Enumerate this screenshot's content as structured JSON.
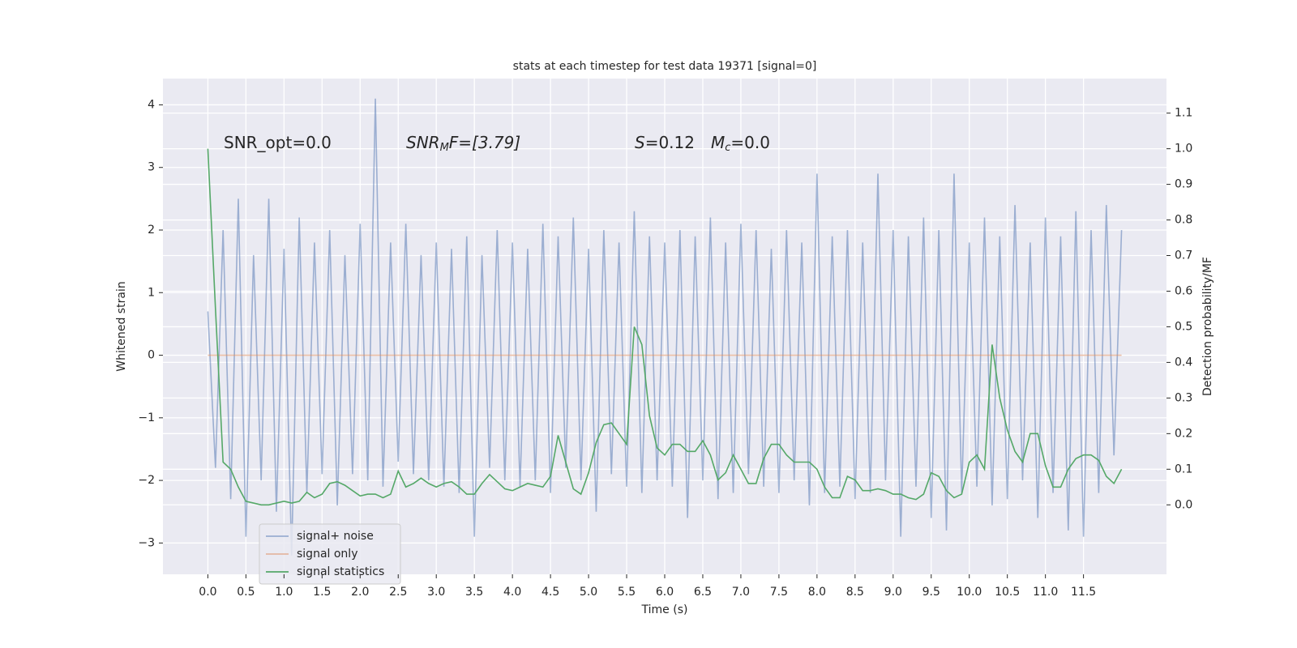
{
  "chart_data": {
    "type": "line",
    "title": "stats at each timestep for test data 19371 [signal=0]",
    "xlabel": "Time (s)",
    "ylabel": "Whitened strain",
    "y2label": "Detection probability/MF",
    "annotations": [
      {
        "text": [
          "SNR_opt=0.0"
        ]
      },
      {
        "text": [
          "SNR",
          "M",
          "F=[3.79]"
        ]
      },
      {
        "text": [
          "S",
          "=0.12",
          "M",
          "c",
          "=0.0"
        ]
      }
    ],
    "x": [
      0,
      0.1,
      0.2,
      0.3,
      0.4,
      0.5,
      0.6,
      0.7,
      0.8,
      0.9,
      1,
      1.1,
      1.2,
      1.3,
      1.4,
      1.5,
      1.6,
      1.7,
      1.8,
      1.9,
      2,
      2.1,
      2.2,
      2.3,
      2.4,
      2.5,
      2.6,
      2.7,
      2.8,
      2.9,
      3,
      3.1,
      3.2,
      3.3,
      3.4,
      3.5,
      3.6,
      3.7,
      3.8,
      3.9,
      4,
      4.1,
      4.2,
      4.3,
      4.4,
      4.5,
      4.6,
      4.7,
      4.8,
      4.9,
      5,
      5.1,
      5.2,
      5.3,
      5.4,
      5.5,
      5.6,
      5.7,
      5.8,
      5.9,
      6,
      6.1,
      6.2,
      6.3,
      6.4,
      6.5,
      6.6,
      6.7,
      6.8,
      6.9,
      7,
      7.1,
      7.2,
      7.3,
      7.4,
      7.5,
      7.6,
      7.7,
      7.8,
      7.9,
      8,
      8.1,
      8.2,
      8.3,
      8.4,
      8.5,
      8.6,
      8.7,
      8.8,
      8.9,
      9,
      9.1,
      9.2,
      9.3,
      9.4,
      9.5,
      9.6,
      9.7,
      9.8,
      9.9,
      10,
      10.1,
      10.2,
      10.3,
      10.4,
      10.5,
      10.6,
      10.7,
      10.8,
      10.9,
      11,
      11.1,
      11.2,
      11.3,
      11.4,
      11.5,
      11.6,
      11.7,
      11.8,
      11.9,
      12
    ],
    "series": [
      {
        "name": "signal+ noise",
        "color": "#4c72b0",
        "opacity": 0.5,
        "axis": "y",
        "values": [
          0.7,
          -1.8,
          2.0,
          -2.3,
          2.5,
          -2.9,
          1.6,
          -2.0,
          2.5,
          -2.5,
          1.7,
          -3.2,
          2.2,
          -2.2,
          1.8,
          -1.9,
          2.0,
          -2.4,
          1.6,
          -1.9,
          2.1,
          -2.0,
          4.1,
          -2.1,
          1.8,
          -1.7,
          2.1,
          -1.9,
          1.6,
          -2.0,
          1.8,
          -2.1,
          1.7,
          -2.2,
          1.9,
          -2.9,
          1.6,
          -1.8,
          2.0,
          -2.0,
          1.8,
          -2.1,
          1.7,
          -2.0,
          2.1,
          -2.2,
          1.9,
          -1.8,
          2.2,
          -2.0,
          1.7,
          -2.5,
          2.0,
          -1.9,
          1.8,
          -2.1,
          2.3,
          -2.2,
          1.9,
          -2.0,
          1.8,
          -2.1,
          2.0,
          -2.6,
          1.9,
          -2.0,
          2.2,
          -2.3,
          1.8,
          -2.2,
          2.1,
          -1.9,
          2.0,
          -2.1,
          1.7,
          -2.2,
          2.0,
          -2.0,
          1.8,
          -2.4,
          2.9,
          -2.2,
          1.9,
          -2.1,
          2.0,
          -2.3,
          1.8,
          -2.2,
          2.9,
          -2.0,
          2.0,
          -2.9,
          1.9,
          -2.1,
          2.2,
          -2.6,
          2.0,
          -2.8,
          2.9,
          -2.2,
          1.8,
          -2.1,
          2.2,
          -2.4,
          1.9,
          -2.3,
          2.4,
          -2.0,
          1.8,
          -2.6,
          2.2,
          -2.2,
          1.9,
          -2.8,
          2.3,
          -2.9,
          2.0,
          -2.2,
          2.4,
          -1.6,
          2.0
        ]
      },
      {
        "name": "signal only",
        "color": "#dd8452",
        "opacity": 0.5,
        "axis": "y",
        "x": [
          0,
          12
        ],
        "values": [
          0,
          0
        ]
      },
      {
        "name": "signal statistics",
        "color": "#55a868",
        "opacity": 1,
        "axis": "y2",
        "values": [
          1.0,
          0.55,
          0.12,
          0.1,
          0.05,
          0.01,
          0.005,
          0,
          0,
          0.005,
          0.01,
          0.005,
          0.01,
          0.035,
          0.02,
          0.03,
          0.06,
          0.065,
          0.055,
          0.04,
          0.025,
          0.03,
          0.03,
          0.02,
          0.03,
          0.095,
          0.05,
          0.06,
          0.075,
          0.06,
          0.05,
          0.06,
          0.065,
          0.05,
          0.03,
          0.03,
          0.06,
          0.085,
          0.065,
          0.045,
          0.04,
          0.05,
          0.06,
          0.055,
          0.05,
          0.08,
          0.195,
          0.12,
          0.045,
          0.03,
          0.09,
          0.175,
          0.225,
          0.23,
          0.2,
          0.17,
          0.5,
          0.45,
          0.25,
          0.16,
          0.14,
          0.17,
          0.17,
          0.15,
          0.15,
          0.18,
          0.14,
          0.07,
          0.09,
          0.14,
          0.1,
          0.06,
          0.06,
          0.13,
          0.17,
          0.17,
          0.14,
          0.12,
          0.12,
          0.12,
          0.1,
          0.05,
          0.02,
          0.02,
          0.08,
          0.07,
          0.04,
          0.04,
          0.045,
          0.04,
          0.03,
          0.03,
          0.02,
          0.015,
          0.03,
          0.09,
          0.08,
          0.04,
          0.02,
          0.03,
          0.12,
          0.14,
          0.1,
          0.45,
          0.3,
          0.21,
          0.15,
          0.12,
          0.2,
          0.2,
          0.11,
          0.05,
          0.05,
          0.1,
          0.13,
          0.14,
          0.14,
          0.125,
          0.08,
          0.06,
          0.1
        ]
      }
    ],
    "xlim": [
      -0.59,
      12.59
    ],
    "xticks": [
      {
        "value": 0,
        "label": "0.0"
      },
      0.5,
      {
        "value": 1,
        "label": "1.0"
      },
      1.5,
      {
        "value": 2,
        "label": "2.0"
      },
      2.5,
      {
        "value": 3,
        "label": "3.0"
      },
      3.5,
      {
        "value": 4,
        "label": "4.0"
      },
      4.5,
      {
        "value": 5,
        "label": "5.0"
      },
      5.5,
      {
        "value": 6,
        "label": "6.0"
      },
      6.5,
      {
        "value": 7,
        "label": "7.0"
      },
      7.5,
      {
        "value": 8,
        "label": "8.0"
      },
      8.5,
      {
        "value": 9,
        "label": "9.0"
      },
      9.5,
      {
        "value": 10,
        "label": "10.0"
      },
      10.5,
      {
        "value": 11,
        "label": "11.0"
      },
      11.5
    ],
    "ylim": [
      -3.5,
      4.42
    ],
    "yticks": [
      {
        "value": -3,
        "label": "−3"
      },
      {
        "value": -2,
        "label": "−2"
      },
      {
        "value": -1,
        "label": "−1"
      },
      0,
      1,
      2,
      3,
      4
    ],
    "y2lim": [
      -0.195,
      1.197
    ],
    "y2ticks": [
      {
        "value": 0,
        "label": "0.0"
      },
      0.1,
      0.2,
      0.3,
      0.4,
      0.5,
      0.6,
      0.7,
      0.8,
      0.9,
      {
        "value": 1,
        "label": "1.0"
      },
      1.1
    ],
    "grid": true,
    "legend": "lower left"
  }
}
